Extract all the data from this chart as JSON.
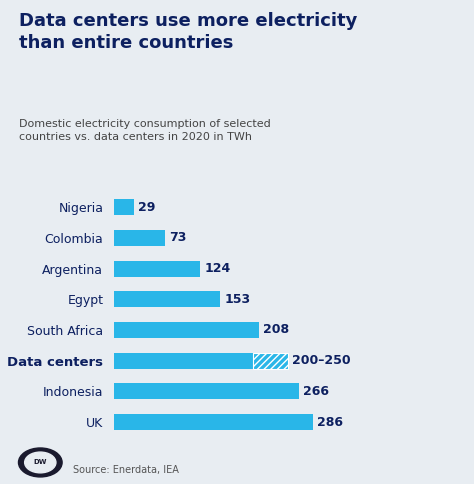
{
  "title": "Data centers use more electricity\nthan entire countries",
  "subtitle": "Domestic electricity consumption of selected\ncountries vs. data centers in 2020 in TWh",
  "categories": [
    "Nigeria",
    "Colombia",
    "Argentina",
    "Egypt",
    "South Africa",
    "Data centers",
    "Indonesia",
    "UK"
  ],
  "values": [
    29,
    73,
    124,
    153,
    208,
    200,
    266,
    286
  ],
  "hatch_value": 50,
  "hatch_index": 5,
  "labels": [
    "29",
    "73",
    "124",
    "153",
    "208",
    "200–250",
    "266",
    "286"
  ],
  "bar_color": "#29b6e8",
  "hatch_color": "#29b6e8",
  "bg_color": "#e8edf2",
  "title_color": "#0d2060",
  "subtitle_color": "#444444",
  "label_color": "#0d2060",
  "value_label_bold_index": 5,
  "source_text": "Source: Enerdata, IEA",
  "bold_index": 5,
  "xlim": [
    0,
    340
  ],
  "title_fontsize": 13,
  "subtitle_fontsize": 8,
  "bar_label_fontsize": 9,
  "ytick_fontsize": 9
}
